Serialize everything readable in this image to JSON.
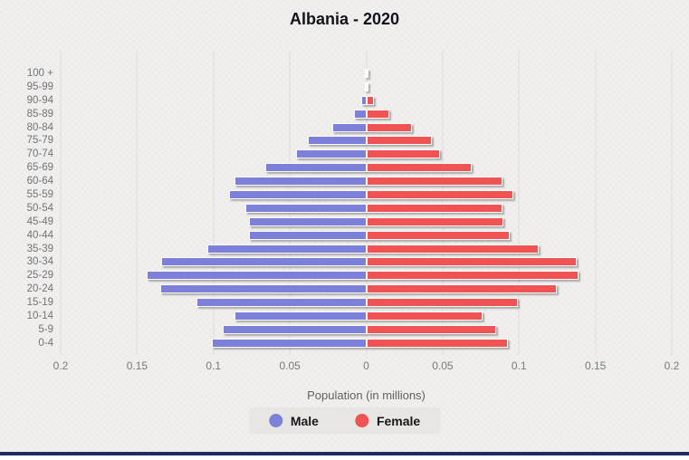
{
  "title": "Albania - 2020",
  "xlabel": "Population (in millions)",
  "legend": {
    "male_label": "Male",
    "female_label": "Female"
  },
  "colors": {
    "male": "#7c80d8",
    "female": "#f05353",
    "background": "#f1f0ee",
    "gridline": "#dddcd9",
    "window_edge": "#212b62"
  },
  "axis": {
    "ticks": [
      "0.2",
      "0.15",
      "0.1",
      "0.05",
      "0",
      "0.05",
      "0.1",
      "0.15",
      "0.2"
    ],
    "max_each_side": 0.2
  },
  "chart_data": {
    "type": "bar",
    "subtype": "population-pyramid",
    "title": "Albania - 2020",
    "xlabel": "Population (in millions)",
    "xlim": [
      -0.2,
      0.2
    ],
    "xmax": 0.2,
    "grid": true,
    "legend_position": "bottom",
    "categories": [
      "100 +",
      "95-99",
      "90-94",
      "85-89",
      "80-84",
      "75-79",
      "70-74",
      "65-69",
      "60-64",
      "55-59",
      "50-54",
      "45-49",
      "40-44",
      "35-39",
      "30-34",
      "25-29",
      "20-24",
      "15-19",
      "10-14",
      "5-9",
      "0-4"
    ],
    "series": [
      {
        "name": "Male",
        "values": [
          0.0,
          0.0,
          0.003,
          0.008,
          0.022,
          0.038,
          0.046,
          0.066,
          0.086,
          0.09,
          0.079,
          0.077,
          0.077,
          0.104,
          0.134,
          0.144,
          0.135,
          0.111,
          0.086,
          0.094,
          0.101
        ]
      },
      {
        "name": "Female",
        "values": [
          0.0,
          0.0015,
          0.005,
          0.015,
          0.03,
          0.043,
          0.048,
          0.069,
          0.089,
          0.096,
          0.089,
          0.09,
          0.094,
          0.113,
          0.138,
          0.139,
          0.125,
          0.099,
          0.076,
          0.085,
          0.093
        ]
      }
    ]
  }
}
